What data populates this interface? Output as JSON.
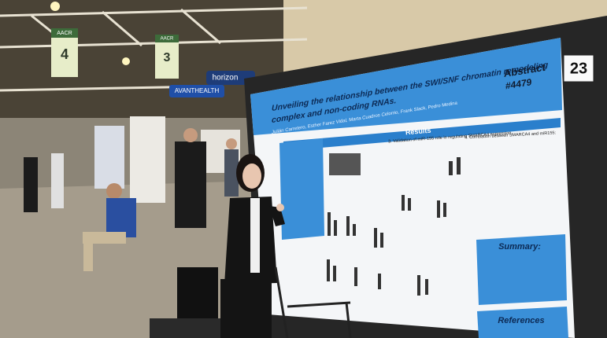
{
  "signs": [
    {
      "org": "AACR",
      "number": "4"
    },
    {
      "org": "AACR",
      "number": "3"
    }
  ],
  "banners": [
    "horizon",
    "AVANTHEALTH"
  ],
  "board_number": "23",
  "poster": {
    "title_line1": "Unveiling the relationship between the SWI/SNF chromatin remodeling",
    "title_line2": "complex and non-coding RNAs.",
    "authors": "Julián Carretero, Esther Farez Vidal, Marta Cuadros Celorrio, Frank Slack, Pedro Medina",
    "abstract_label": "Abstract",
    "abstract_number": "#4479",
    "results": "Results",
    "section_3": "3. Validation of miR-155 role in regulating SMARCA4 expression.",
    "section_4": "4. Correlation between SMARCA4 and miR155:",
    "summary": "Summary:",
    "references": "References"
  }
}
